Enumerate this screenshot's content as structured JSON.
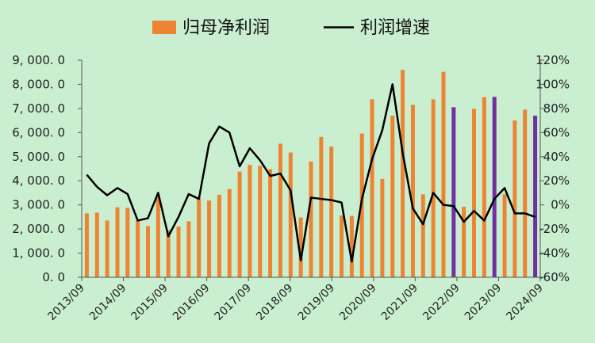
{
  "chart_data": {
    "type": "bar+line",
    "legend": {
      "placement": "top-center",
      "bar_label": "归母净利润",
      "line_label": "利润增速"
    },
    "colors": {
      "bar": "#ee8432",
      "bar_highlight": "#7030a0",
      "line": "#000000",
      "axis": "#555555"
    },
    "y_left": {
      "range": [
        0,
        9000
      ],
      "ticks": [
        0,
        1000,
        2000,
        3000,
        4000,
        5000,
        6000,
        7000,
        8000,
        9000
      ],
      "tick_labels": [
        "0. 0",
        "1, 000. 0",
        "2, 000. 0",
        "3, 000. 0",
        "4, 000. 0",
        "5, 000. 0",
        "6, 000. 0",
        "7, 000. 0",
        "8, 000. 0",
        "9, 000. 0"
      ]
    },
    "y_right": {
      "range": [
        -60,
        120
      ],
      "ticks": [
        -60,
        -40,
        -20,
        0,
        20,
        40,
        60,
        80,
        100,
        120
      ],
      "tick_labels": [
        "-60%",
        "-40%",
        "-20%",
        "0%",
        "20%",
        "40%",
        "60%",
        "80%",
        "100%",
        "120%"
      ]
    },
    "x_tick_labels": [
      "2013/09",
      "2014/09",
      "2015/09",
      "2016/09",
      "2017/09",
      "2018/09",
      "2019/09",
      "2020/09",
      "2021/09",
      "2022/09",
      "2023/09",
      "2024/09"
    ],
    "periods": 45,
    "series": [
      {
        "name": "归母净利润",
        "kind": "bar",
        "values": [
          2650,
          2680,
          2350,
          2900,
          2880,
          2350,
          2120,
          3300,
          1950,
          2100,
          2320,
          3280,
          3180,
          3420,
          3660,
          4380,
          4660,
          4620,
          4480,
          5540,
          5170,
          2480,
          4800,
          5820,
          5420,
          2560,
          2540,
          5960,
          7380,
          4080,
          6700,
          8600,
          7150,
          3440,
          7380,
          8520,
          7050,
          2920,
          6980,
          7470,
          7480,
          3440,
          6500,
          6950,
          6700
        ],
        "highlight_indices": [
          36,
          40,
          44
        ]
      },
      {
        "name": "利润增速",
        "kind": "line",
        "values": [
          25,
          15,
          8,
          14,
          9,
          -13,
          -11,
          10,
          -26,
          -10,
          9,
          5,
          51,
          65,
          60,
          32,
          47,
          37,
          24,
          26,
          12,
          -46,
          6,
          5,
          4,
          2,
          -47,
          5,
          38,
          62,
          100,
          43,
          -3,
          -16,
          10,
          0,
          -1,
          -14,
          -5,
          -13,
          5,
          14,
          -7,
          -7,
          -10
        ]
      }
    ]
  }
}
